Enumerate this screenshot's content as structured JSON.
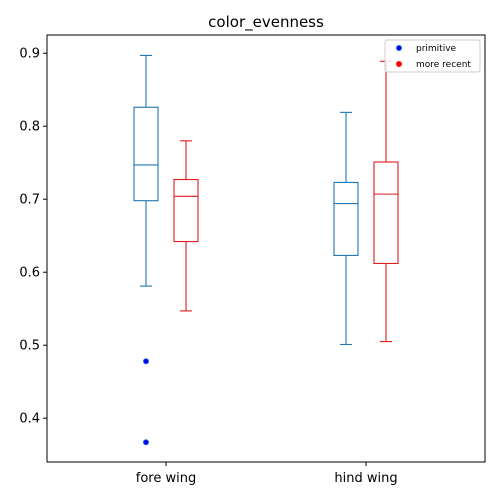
{
  "chart_data": {
    "type": "box",
    "title": "color_evenness",
    "xlabel": "",
    "ylabel": "",
    "categories": [
      "fore wing",
      "hind wing"
    ],
    "ylim": [
      0.34,
      0.925
    ],
    "yticks": [
      0.4,
      0.5,
      0.6,
      0.7,
      0.8,
      0.9
    ],
    "grid": false,
    "legend": {
      "placement": "top-right"
    },
    "series": [
      {
        "name": "primitive",
        "color": "#1f77b4",
        "marker_color": "#0000ff",
        "boxes": [
          {
            "whislo": 0.581,
            "q1": 0.698,
            "med": 0.747,
            "q3": 0.826,
            "whishi": 0.897,
            "fliers": [
              0.478,
              0.367
            ]
          },
          {
            "whislo": 0.501,
            "q1": 0.623,
            "med": 0.694,
            "q3": 0.723,
            "whishi": 0.819,
            "fliers": []
          }
        ]
      },
      {
        "name": "more recent",
        "color": "#e31a1c",
        "marker_color": "#ff0000",
        "boxes": [
          {
            "whislo": 0.547,
            "q1": 0.642,
            "med": 0.704,
            "q3": 0.727,
            "whishi": 0.78,
            "fliers": []
          },
          {
            "whislo": 0.505,
            "q1": 0.612,
            "med": 0.707,
            "q3": 0.751,
            "whishi": 0.889,
            "fliers": []
          }
        ]
      }
    ]
  }
}
